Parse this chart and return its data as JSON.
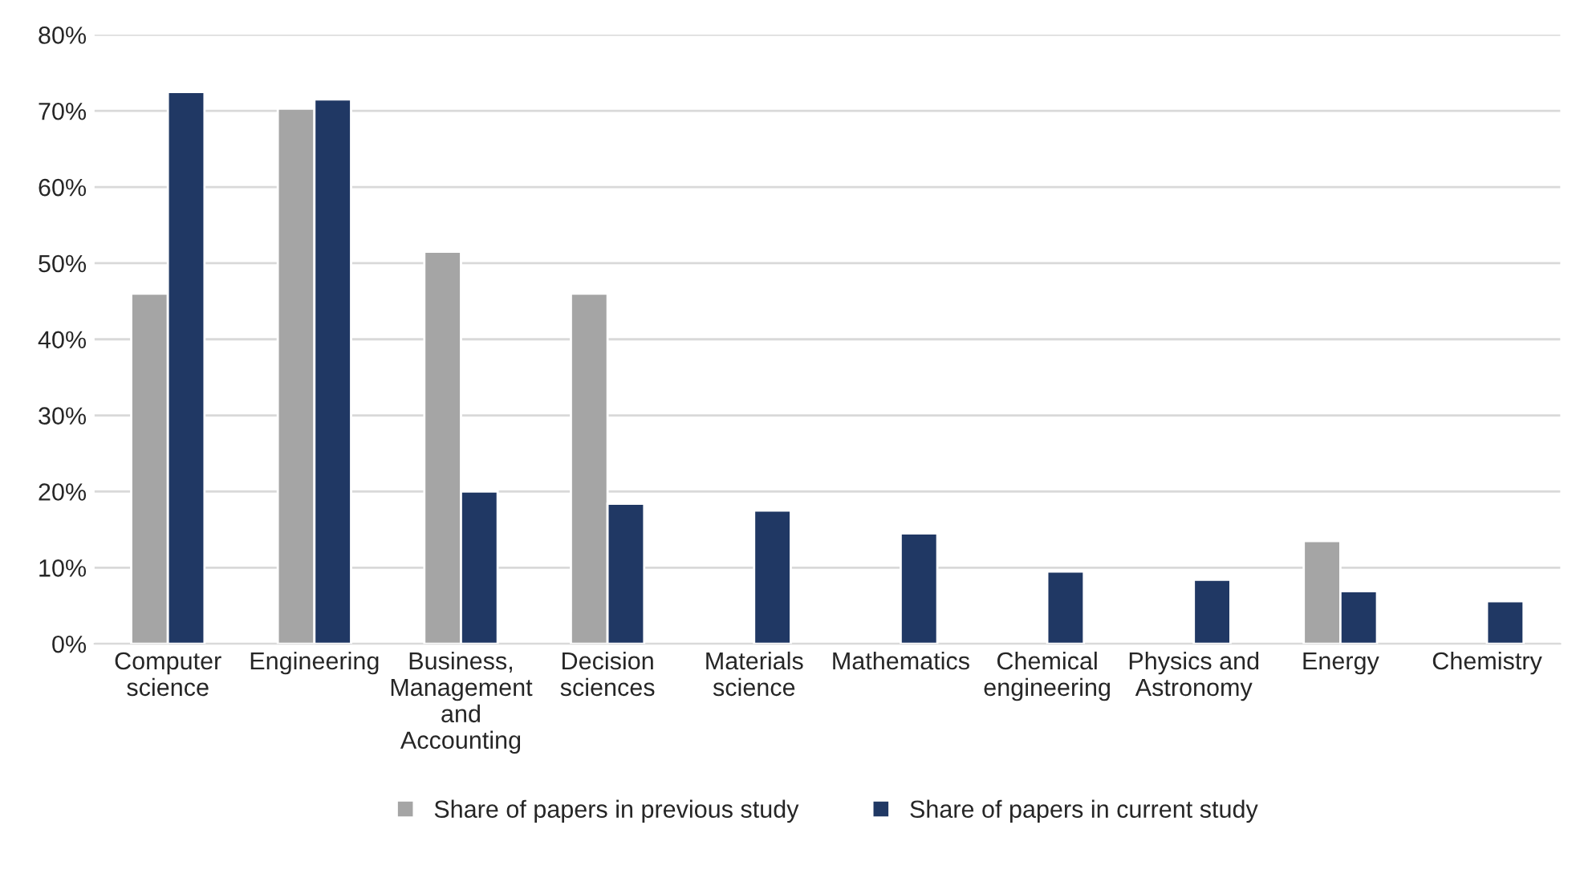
{
  "chart_data": {
    "type": "bar",
    "categories": [
      "Computer science",
      "Engineering",
      "Business, Management and Accounting",
      "Decision sciences",
      "Materials science",
      "Mathematics",
      "Chemical engineering",
      "Physics and Astronomy",
      "Energy",
      "Chemistry"
    ],
    "series": [
      {
        "name": "Share of papers in previous study",
        "color": "#a5a5a5",
        "values": [
          46,
          70.3,
          51.5,
          46,
          null,
          null,
          null,
          null,
          13.5,
          null
        ]
      },
      {
        "name": "Share of papers in current study",
        "color": "#203864",
        "values": [
          72.5,
          71.5,
          20,
          18.4,
          17.5,
          14.5,
          9.5,
          8.4,
          6.9,
          5.6
        ]
      }
    ],
    "ylim": [
      0,
      80
    ],
    "yticks": [
      {
        "value": 0,
        "label": "0%"
      },
      {
        "value": 10,
        "label": "10%"
      },
      {
        "value": 20,
        "label": "20%"
      },
      {
        "value": 30,
        "label": "30%"
      },
      {
        "value": 40,
        "label": "40%"
      },
      {
        "value": 50,
        "label": "50%"
      },
      {
        "value": 60,
        "label": "60%"
      },
      {
        "value": 70,
        "label": "70%"
      },
      {
        "value": 80,
        "label": "80%"
      }
    ],
    "grid": "y",
    "legend": "bottom"
  }
}
